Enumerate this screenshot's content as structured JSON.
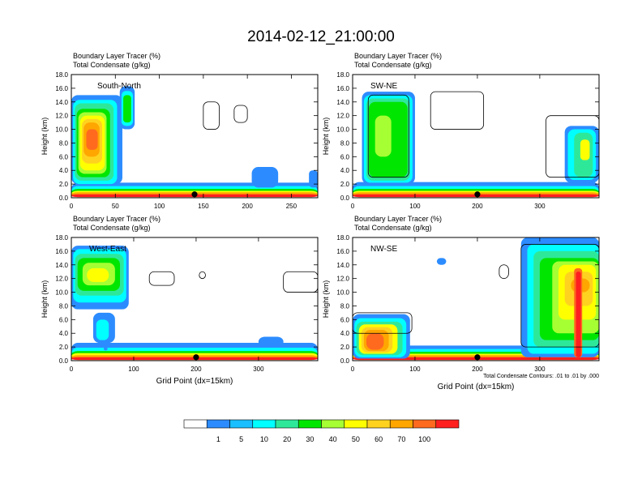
{
  "main_title": "2014-02-12_21:00:00",
  "chart_data": [
    {
      "type": "heatmap",
      "label": "South-North",
      "title_line1": "Boundary Layer Tracer   (%)",
      "title_line2": "Total Condensate   (g/kg)",
      "ylabel": "Height (km)",
      "xlabel": "",
      "xlim": [
        0,
        280
      ],
      "ylim": [
        0,
        18
      ],
      "xticks": [
        0,
        50,
        100,
        150,
        200,
        250
      ],
      "yticks": [
        "0.0",
        "2.0",
        "4.0",
        "6.0",
        "8.0",
        "10.0",
        "12.0",
        "14.0",
        "16.0",
        "18.0"
      ],
      "marker_x": 140
    },
    {
      "type": "heatmap",
      "label": "SW-NE",
      "title_line1": "Boundary Layer Tracer   (%)",
      "title_line2": "Total Condensate   (g/kg)",
      "ylabel": "Height (km)",
      "xlabel": "",
      "xlim": [
        0,
        395
      ],
      "ylim": [
        0,
        18
      ],
      "xticks": [
        0,
        100,
        200,
        300
      ],
      "yticks": [
        "0.0",
        "2.0",
        "4.0",
        "6.0",
        "8.0",
        "10.0",
        "12.0",
        "14.0",
        "16.0",
        "18.0"
      ],
      "marker_x": 200
    },
    {
      "type": "heatmap",
      "label": "West-East",
      "title_line1": "Boundary Layer Tracer   (%)",
      "title_line2": "Total Condensate   (g/kg)",
      "ylabel": "Height (km)",
      "xlabel": "Grid Point (dx=15km)",
      "xlim": [
        0,
        395
      ],
      "ylim": [
        0,
        18
      ],
      "xticks": [
        0,
        100,
        200,
        300
      ],
      "yticks": [
        "0.0",
        "2.0",
        "4.0",
        "6.0",
        "8.0",
        "10.0",
        "12.0",
        "14.0",
        "16.0",
        "18.0"
      ],
      "marker_x": 200
    },
    {
      "type": "heatmap",
      "label": "NW-SE",
      "title_line1": "Boundary Layer Tracer   (%)",
      "title_line2": "Total Condensate   (g/kg)",
      "ylabel": "Height (km)",
      "xlabel": "Grid Point (dx=15km)",
      "xlim": [
        0,
        395
      ],
      "ylim": [
        0,
        18
      ],
      "xticks": [
        0,
        100,
        200,
        300
      ],
      "yticks": [
        "0.0",
        "2.0",
        "4.0",
        "6.0",
        "8.0",
        "10.0",
        "12.0",
        "14.0",
        "16.0",
        "18.0"
      ],
      "marker_x": 200,
      "footnote": "Total Condensate Contours: .01 to .01 by .000"
    }
  ],
  "colorbar": {
    "colors": [
      "#ffffff",
      "#2c8cff",
      "#19bfff",
      "#00ffff",
      "#2ee89a",
      "#00e600",
      "#a6ff33",
      "#ffff00",
      "#ffd21f",
      "#ffa600",
      "#ff6a1f",
      "#ff1f1f"
    ],
    "labels": [
      "1",
      "5",
      "10",
      "20",
      "30",
      "40",
      "50",
      "60",
      "70",
      "100"
    ]
  }
}
